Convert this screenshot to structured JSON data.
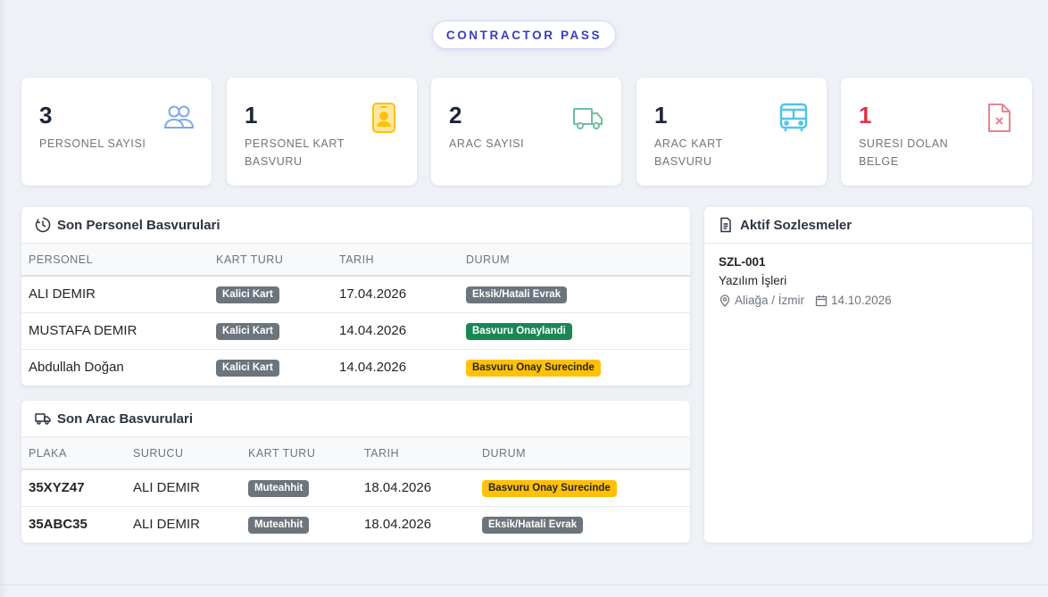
{
  "brand": "CONTRACTOR PASS",
  "stats": [
    {
      "value": "3",
      "label": "PERSONEL SAYISI",
      "icon": "users-icon",
      "color": "#7fa8e8"
    },
    {
      "value": "1",
      "label": "PERSONEL KART BASVURU",
      "icon": "id-badge-icon",
      "color": "#ffc107"
    },
    {
      "value": "2",
      "label": "ARAC SAYISI",
      "icon": "truck-icon",
      "color": "#6fbf9a"
    },
    {
      "value": "1",
      "label": "ARAC KART BASVURU",
      "icon": "bus-icon",
      "color": "#4fc6e8"
    },
    {
      "value": "1",
      "label": "SURESI DOLAN BELGE",
      "icon": "file-x-icon",
      "color": "#e8848f"
    }
  ],
  "personnel": {
    "title": "Son Personel Basvurulari",
    "icon": "clock-history-icon",
    "columns": [
      "PERSONEL",
      "KART TURU",
      "TARIH",
      "DURUM"
    ],
    "rows": [
      {
        "name": "ALI DEMIR",
        "card": "Kalici Kart",
        "date": "17.04.2026",
        "status": "Eksik/Hatali Evrak",
        "status_type": "gray"
      },
      {
        "name": "MUSTAFA DEMIR",
        "card": "Kalici Kart",
        "date": "14.04.2026",
        "status": "Basvuru Onaylandi",
        "status_type": "green"
      },
      {
        "name": "Abdullah Doğan",
        "card": "Kalici Kart",
        "date": "14.04.2026",
        "status": "Basvuru Onay Surecinde",
        "status_type": "yellow"
      }
    ]
  },
  "vehicles": {
    "title": "Son Arac Basvurulari",
    "icon": "truck-icon",
    "columns": [
      "PLAKA",
      "SURUCU",
      "KART TURU",
      "TARIH",
      "DURUM"
    ],
    "rows": [
      {
        "plate": "35XYZ47",
        "driver": "ALI DEMIR",
        "card": "Muteahhit",
        "date": "18.04.2026",
        "status": "Basvuru Onay Surecinde",
        "status_type": "yellow"
      },
      {
        "plate": "35ABC35",
        "driver": "ALI DEMIR",
        "card": "Muteahhit",
        "date": "18.04.2026",
        "status": "Eksik/Hatali Evrak",
        "status_type": "gray"
      }
    ]
  },
  "contracts": {
    "title": "Aktif Sozlesmeler",
    "icon": "file-text-icon",
    "items": [
      {
        "code": "SZL-001",
        "name": "Yazılım İşleri",
        "location": "Aliağa / İzmir",
        "date": "14.10.2026"
      }
    ]
  }
}
